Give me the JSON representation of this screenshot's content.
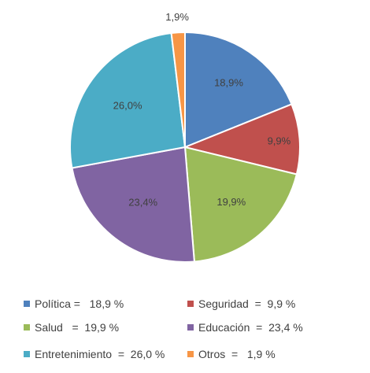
{
  "chart_data": {
    "type": "pie",
    "categories": [
      "Política",
      "Seguridad",
      "Salud",
      "Educación",
      "Entretenimiento",
      "Otros"
    ],
    "values": [
      18.9,
      9.9,
      19.9,
      23.4,
      26.0,
      1.9
    ],
    "data_labels": [
      "18,9%",
      "9,9%",
      "19,9%",
      "23,4%",
      "26,0%",
      "1,9%"
    ],
    "colors": [
      "#4f81bd",
      "#c0504d",
      "#9bbb59",
      "#8064a2",
      "#4bacc6",
      "#f79646"
    ],
    "legend": {
      "placement": "bottom",
      "entries": [
        "Política =   18,9 %",
        "Seguridad  =  9,9 %",
        "Salud   =  19,9 %",
        "Educación  =  23,4 %",
        "Entretenimiento  =  26,0 %",
        "Otros  =   1,9 %"
      ]
    }
  }
}
